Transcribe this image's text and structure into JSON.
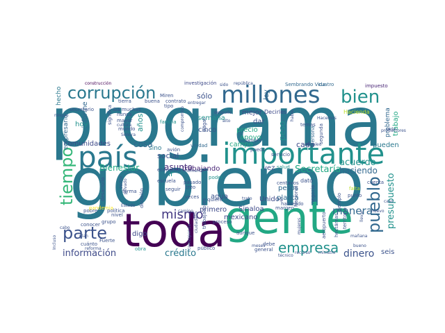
{
  "word_cloud": {
    "words": [
      {
        "text": "programa",
        "color": "#2a788e"
      },
      {
        "text": "gobierno",
        "color": "#2a788e"
      },
      {
        "text": "gente",
        "color": "#22a884"
      },
      {
        "text": "toda",
        "color": "#440154"
      },
      {
        "text": "país",
        "color": "#2a788e"
      },
      {
        "text": "importante",
        "color": "#21918c"
      },
      {
        "text": "millones",
        "color": "#31688e"
      },
      {
        "text": "corrupción",
        "color": "#2a788e"
      },
      {
        "text": "bien",
        "color": "#21918c"
      },
      {
        "text": "parte",
        "color": "#3b528b"
      },
      {
        "text": "tiempo",
        "color": "#35b779"
      },
      {
        "text": "pueblo",
        "color": "#31688e"
      },
      {
        "text": "empresa",
        "color": "#21918c"
      },
      {
        "text": "mismo",
        "color": "#443983"
      },
      {
        "text": "información",
        "color": "#3e4a89"
      },
      {
        "text": "crédito",
        "color": "#2a788e"
      },
      {
        "text": "presupuesto",
        "color": "#21918c"
      },
      {
        "text": "dinero",
        "color": "#3b528b"
      },
      {
        "text": "manera",
        "color": "#31688e"
      },
      {
        "text": "Secretaría",
        "color": "#22a884"
      },
      {
        "text": "acuerdo",
        "color": "#21918c"
      },
      {
        "text": "haciendo",
        "color": "#31688e"
      },
      {
        "text": "trabajo",
        "color": "#22a884"
      },
      {
        "text": "problema",
        "color": "#31688e"
      },
      {
        "text": "Bienestar",
        "color": "#22a884"
      },
      {
        "text": "asunto",
        "color": "#472d7b"
      },
      {
        "text": "comunidades",
        "color": "#3e4a89"
      },
      {
        "text": "empresario",
        "color": "#31688e"
      },
      {
        "text": "informe",
        "color": "#31688e"
      },
      {
        "text": "hecho",
        "color": "#2a788e"
      },
      {
        "text": "años",
        "color": "#21918c"
      },
      {
        "text": "hoy",
        "color": "#21918c"
      },
      {
        "text": "cosa",
        "color": "#31688e"
      },
      {
        "text": "social",
        "color": "#3b528b"
      },
      {
        "text": "sino",
        "color": "#2a788e"
      },
      {
        "text": "semana",
        "color": "#21918c"
      },
      {
        "text": "sólo",
        "color": "#3b528b"
      },
      {
        "text": "peso",
        "color": "#21918c"
      },
      {
        "text": "ley",
        "color": "#31688e"
      },
      {
        "text": "cinco",
        "color": "#3b528b"
      },
      {
        "text": "mejor",
        "color": "#3e4a89"
      },
      {
        "text": "dar",
        "color": "#3b528b"
      },
      {
        "text": "precio",
        "color": "#22a884"
      },
      {
        "text": "apoyo",
        "color": "#22a884"
      },
      {
        "text": "campo",
        "color": "#22a884"
      },
      {
        "text": "cada",
        "color": "#3e4a89"
      },
      {
        "text": "pueden",
        "color": "#2a788e"
      },
      {
        "text": "trabajando",
        "color": "#482475"
      },
      {
        "text": "vez",
        "color": "#3b528b"
      },
      {
        "text": "agua",
        "color": "#3b528b"
      },
      {
        "text": "primero",
        "color": "#3e4a89"
      },
      {
        "text": "Sinaloa",
        "color": "#3e4a89"
      },
      {
        "text": "mexicano",
        "color": "#3e4a89"
      },
      {
        "text": "Unidos",
        "color": "#3e4a89"
      },
      {
        "text": "pesos",
        "color": "#31688e"
      },
      {
        "text": "planta",
        "color": "#31688e"
      },
      {
        "text": "seis",
        "color": "#3b528b"
      },
      {
        "text": "ir",
        "color": "#21918c"
      },
      {
        "text": "digo",
        "color": "#3e4a89"
      },
      {
        "text": "investigación",
        "color": "#3e4a89"
      },
      {
        "text": "Sembrando Vida",
        "color": "#31688e"
      },
      {
        "text": "impuesto",
        "color": "#482475"
      },
      {
        "text": "construcción",
        "color": "#440154"
      },
      {
        "text": "cuatro",
        "color": "#31688e"
      },
      {
        "text": "Decirles",
        "color": "#3e4a89"
      },
      {
        "text": "Hacienda",
        "color": "#bddf26"
      },
      {
        "text": "persona",
        "color": "#31688e"
      },
      {
        "text": "dato",
        "color": "#3b528b"
      },
      {
        "text": "centavos",
        "color": "#3b528b"
      },
      {
        "text": "negocio",
        "color": "#3b528b"
      },
      {
        "text": "habiendo",
        "color": "#3b528b"
      },
      {
        "text": "punto",
        "color": "#3b528b"
      },
      {
        "text": "cuenta",
        "color": "#3b528b"
      },
      {
        "text": "falta",
        "color": "#bddf26"
      },
      {
        "text": "aeropuerto",
        "color": "#3b528b"
      },
      {
        "text": "aunque",
        "color": "#3b528b"
      },
      {
        "text": "general",
        "color": "#3b528b"
      },
      {
        "text": "debe",
        "color": "#3b528b"
      },
      {
        "text": "público",
        "color": "#3b528b"
      },
      {
        "text": "cuánto",
        "color": "#3b528b"
      },
      {
        "text": "Fuerte",
        "color": "#3b528b"
      },
      {
        "text": "obra",
        "color": "#21918c"
      },
      {
        "text": "conocer",
        "color": "#3b528b"
      },
      {
        "text": "grupo",
        "color": "#3b528b"
      },
      {
        "text": "pobre",
        "color": "#3b528b"
      },
      {
        "text": "política",
        "color": "#3b528b"
      },
      {
        "text": "forma",
        "color": "#3b528b"
      },
      {
        "text": "seguir",
        "color": "#3b528b"
      },
      {
        "text": "creo",
        "color": "#3b528b"
      },
      {
        "text": "pasado",
        "color": "#3b528b"
      },
      {
        "text": "veces",
        "color": "#3b528b"
      },
      {
        "text": "decisión",
        "color": "#3b528b"
      },
      {
        "text": "escuela",
        "color": "#3b528b"
      },
      {
        "text": "economía",
        "color": "#3b528b"
      },
      {
        "text": "salud",
        "color": "#21918c"
      },
      {
        "text": "poder",
        "color": "#21918c"
      },
      {
        "text": "verdad",
        "color": "#31688e"
      },
      {
        "text": "avión",
        "color": "#3b528b"
      },
      {
        "text": "secretario",
        "color": "#3b528b"
      },
      {
        "text": "tierra",
        "color": "#3b528b"
      },
      {
        "text": "buena",
        "color": "#3b528b"
      },
      {
        "text": "contrato",
        "color": "#3b528b"
      },
      {
        "text": "tipo",
        "color": "#3b528b"
      },
      {
        "text": "Miren",
        "color": "#3b528b"
      },
      {
        "text": "muchas",
        "color": "#3b528b"
      },
      {
        "text": "nunca",
        "color": "#3b528b"
      },
      {
        "text": "mayor",
        "color": "#3b528b"
      },
      {
        "text": "mundo",
        "color": "#3b528b"
      },
      {
        "text": "familia",
        "color": "#21918c"
      },
      {
        "text": "significa",
        "color": "#3b528b"
      },
      {
        "text": "iba",
        "color": "#3b528b"
      },
      {
        "text": "puedo",
        "color": "#3b528b"
      },
      {
        "text": "servicio",
        "color": "#3b528b"
      },
      {
        "text": "temas",
        "color": "#3b528b"
      },
      {
        "text": "segunda",
        "color": "#3b528b"
      },
      {
        "text": "Nacional",
        "color": "#3b528b"
      },
      {
        "text": "margen",
        "color": "#3b528b"
      },
      {
        "text": "hectáreas",
        "color": "#3b528b"
      },
      {
        "text": "territorio",
        "color": "#3b528b"
      },
      {
        "text": "ejemplo",
        "color": "#3b528b"
      },
      {
        "text": "llevar",
        "color": "#3b528b"
      },
      {
        "text": "mañana",
        "color": "#3b528b"
      },
      {
        "text": "bueno",
        "color": "#3b528b"
      },
      {
        "text": "recurso",
        "color": "#3b528b"
      },
      {
        "text": "nivel",
        "color": "#3b528b"
      },
      {
        "text": "proceso",
        "color": "#3b528b"
      },
      {
        "text": "meses",
        "color": "#3b528b"
      },
      {
        "text": "ministro",
        "color": "#3b528b"
      },
      {
        "text": "mujeres",
        "color": "#3b528b"
      },
      {
        "text": "desarrollo",
        "color": "#3b528b"
      },
      {
        "text": "plan",
        "color": "#3b528b"
      },
      {
        "text": "cabo",
        "color": "#3b528b"
      },
      {
        "text": "pandemia",
        "color": "#fde725"
      },
      {
        "text": "ningún",
        "color": "#3b528b"
      },
      {
        "text": "república",
        "color": "#3b528b"
      },
      {
        "text": "cultura",
        "color": "#3b528b"
      },
      {
        "text": "compromiso",
        "color": "#3b528b"
      },
      {
        "text": "después",
        "color": "#3b528b"
      },
      {
        "text": "Sonora",
        "color": "#3b528b"
      },
      {
        "text": "privado",
        "color": "#3b528b"
      },
      {
        "text": "sector",
        "color": "#3b528b"
      },
      {
        "text": "quiere",
        "color": "#3b528b"
      },
      {
        "text": "pagar",
        "color": "#3b528b"
      },
      {
        "text": "alto",
        "color": "#3b528b"
      },
      {
        "text": "vida",
        "color": "#3b528b"
      },
      {
        "text": "hable",
        "color": "#3b528b"
      },
      {
        "text": "trabajadores",
        "color": "#3b528b"
      },
      {
        "text": "caso",
        "color": "#3b528b"
      },
      {
        "text": "momento",
        "color": "#3b528b"
      },
      {
        "text": "siempre",
        "color": "#3b528b"
      },
      {
        "text": "técnico",
        "color": "#3b528b"
      },
      {
        "text": "Hacemos",
        "color": "#3b528b"
      },
      {
        "text": "camino",
        "color": "#3b528b"
      },
      {
        "text": "corresponde",
        "color": "#3b528b"
      },
      {
        "text": "entregar",
        "color": "#3b528b"
      },
      {
        "text": "productores",
        "color": "#3b528b"
      },
      {
        "text": "empleo",
        "color": "#3b528b"
      },
      {
        "text": "nuevo",
        "color": "#3b528b"
      },
      {
        "text": "sido",
        "color": "#3b528b"
      },
      {
        "text": "Estado",
        "color": "#3b528b"
      },
      {
        "text": "Incluso",
        "color": "#3b528b"
      },
      {
        "text": "trato",
        "color": "#3b528b"
      },
      {
        "text": "ciudadano",
        "color": "#3b528b"
      },
      {
        "text": "reforma",
        "color": "#3b528b"
      }
    ]
  }
}
